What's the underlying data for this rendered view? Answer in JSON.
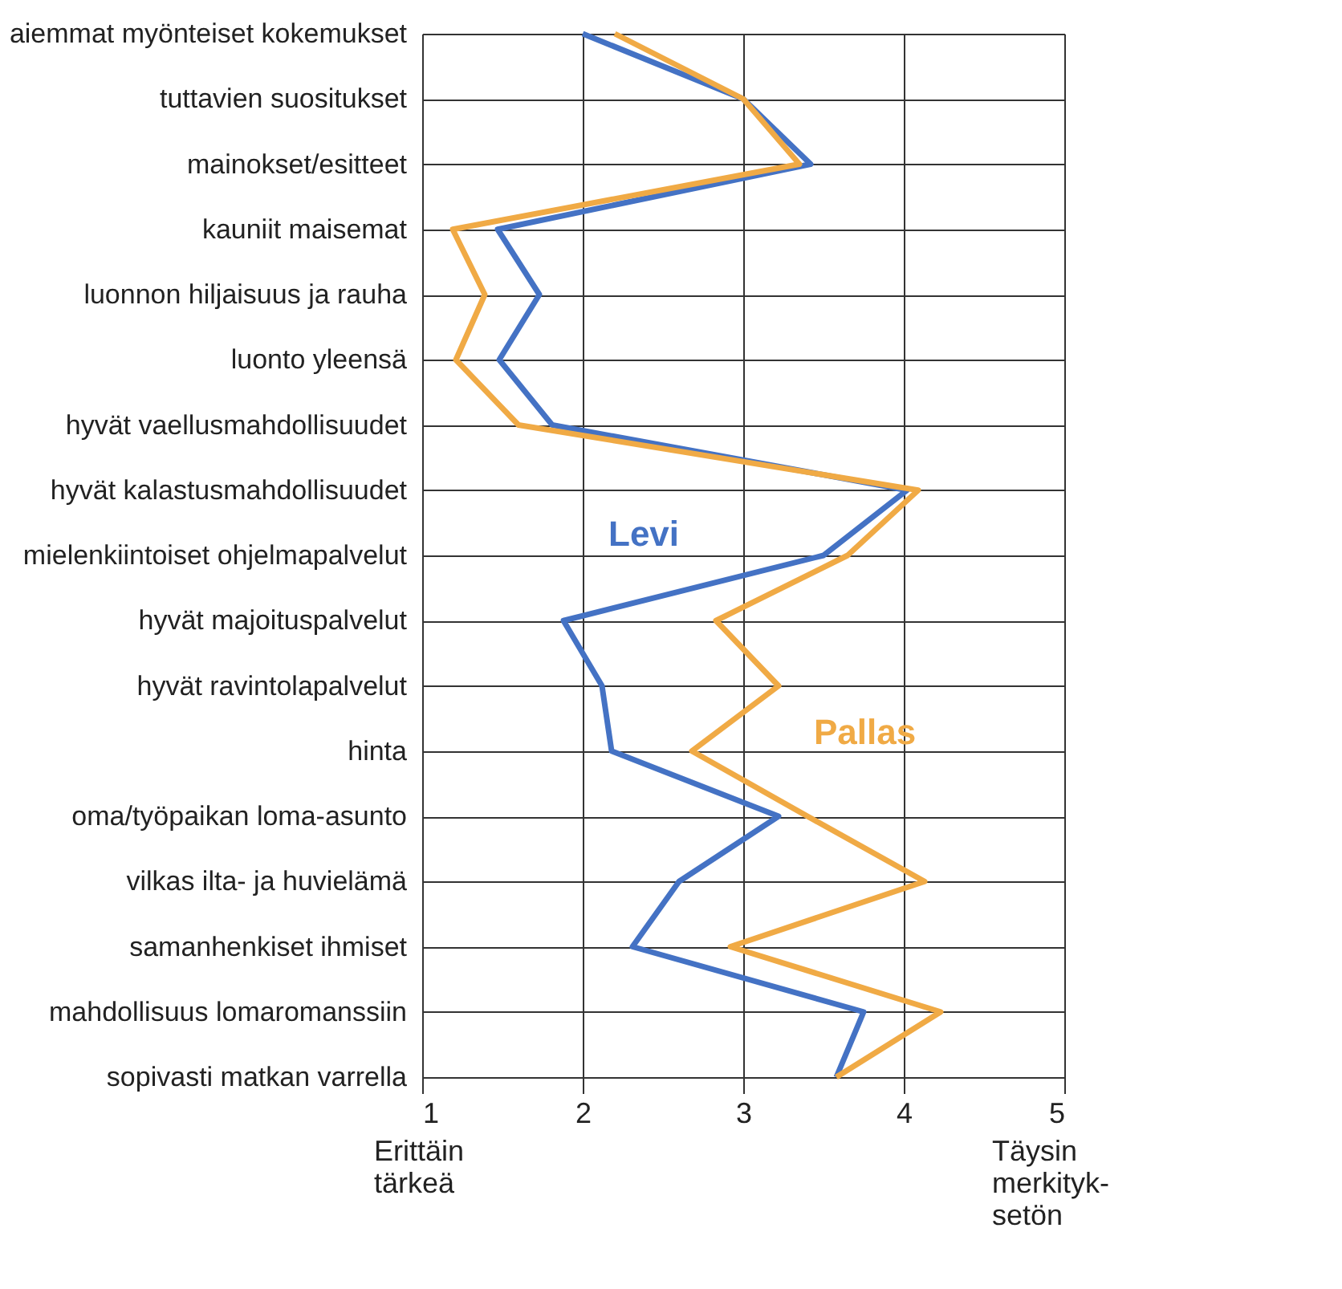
{
  "chart_data": {
    "type": "line",
    "orientation": "horizontal",
    "categories": [
      "aiemmat myönteiset kokemukset",
      "tuttavien suositukset",
      "mainokset/esitteet",
      "kauniit maisemat",
      "luonnon hiljaisuus ja rauha",
      "luonto yleensä",
      "hyvät vaellusmahdollisuudet",
      "hyvät kalastusmahdollisuudet",
      "mielenkiintoiset ohjelmapalvelut",
      "hyvät majoituspalvelut",
      "hyvät ravintolapalvelut",
      "hinta",
      "oma/työpaikan loma-asunto",
      "vilkas ilta- ja huvielämä",
      "samanhenkiset ihmiset",
      "mahdollisuus lomaromanssiin",
      "sopivasti matkan varrella"
    ],
    "series": [
      {
        "name": "Levi",
        "color": "#4472c4",
        "values": [
          2.0,
          3.0,
          3.42,
          1.47,
          1.73,
          1.48,
          1.81,
          4.02,
          3.5,
          1.88,
          2.12,
          2.18,
          3.22,
          2.6,
          2.31,
          3.75,
          3.58
        ]
      },
      {
        "name": "Pallas",
        "color": "#f0aa45",
        "values": [
          2.2,
          3.0,
          3.35,
          1.19,
          1.39,
          1.21,
          1.6,
          4.09,
          3.65,
          2.83,
          3.22,
          2.68,
          3.4,
          4.13,
          2.92,
          4.23,
          3.58
        ]
      }
    ],
    "xlim": [
      1,
      5
    ],
    "xticks": [
      1,
      2,
      3,
      4,
      5
    ],
    "grid": true,
    "legend": false,
    "marker": "none",
    "line_style": "solid",
    "annotations": [
      "Erittäin\ntärkeä",
      "Täysin\nmerkityk-\nsetön"
    ]
  }
}
